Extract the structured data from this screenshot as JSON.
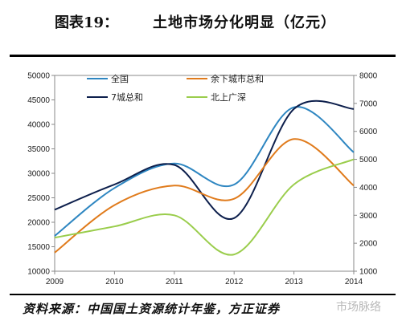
{
  "figure": {
    "label": "图表19：",
    "title": "土地市场分化明显（亿元）",
    "source": "资料来源：中国国土资源统计年鉴，方正证券",
    "watermark": "市场脉络"
  },
  "chart_data": {
    "type": "line",
    "title": "土地市场分化明显（亿元）",
    "x": [
      2009,
      2010,
      2011,
      2012,
      2013,
      2014
    ],
    "xlim": [
      2009,
      2014
    ],
    "x_ticks": [
      "2009",
      "2010",
      "2011",
      "2012",
      "2013",
      "2014"
    ],
    "y_left": {
      "lim": [
        10000,
        50000
      ],
      "ticks": [
        "10000",
        "15000",
        "20000",
        "25000",
        "30000",
        "35000",
        "40000",
        "45000",
        "50000"
      ]
    },
    "y_right": {
      "lim": [
        1000,
        8000
      ],
      "ticks": [
        "1000",
        "2000",
        "3000",
        "4000",
        "5000",
        "6000",
        "7000",
        "8000"
      ]
    },
    "grid": false,
    "legend_position": "top",
    "series": [
      {
        "name": "全国",
        "axis": "left",
        "color": "#2e86c1",
        "values": [
          17200,
          27000,
          32000,
          27700,
          43500,
          34300
        ]
      },
      {
        "name": "7城总和",
        "axis": "right",
        "color": "#0d1f4c",
        "values": [
          3200,
          4100,
          4800,
          2900,
          6800,
          6800
        ]
      },
      {
        "name": "余下城市总和",
        "axis": "left",
        "color": "#e07b1c",
        "values": [
          13800,
          23500,
          27500,
          24800,
          37000,
          27500
        ]
      },
      {
        "name": "北上广深",
        "axis": "right",
        "color": "#9acd4c",
        "values": [
          2200,
          2600,
          3000,
          1600,
          4100,
          5000
        ]
      }
    ]
  }
}
